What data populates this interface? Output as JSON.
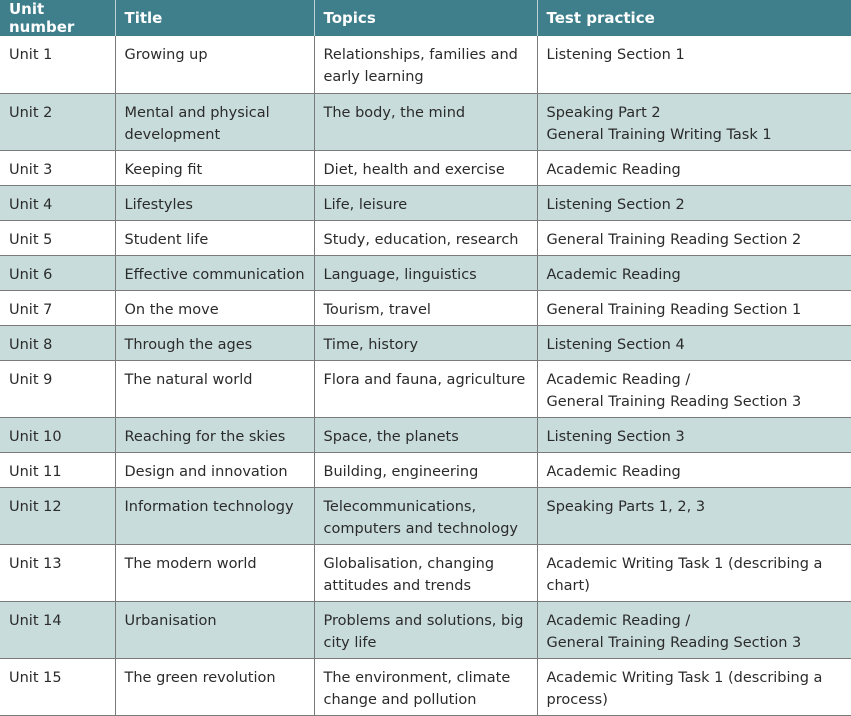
{
  "headers": [
    "Unit number",
    "Title",
    "Topics",
    "Test practice"
  ],
  "rows": [
    {
      "unit": "Unit 1",
      "title": [
        "Growing up"
      ],
      "topics": [
        "Relationships, families and",
        "early learning"
      ],
      "practice": [
        "Listening Section 1"
      ]
    },
    {
      "unit": "Unit 2",
      "title": [
        "Mental and physical",
        "development"
      ],
      "topics": [
        "The body, the mind"
      ],
      "practice": [
        "Speaking Part 2",
        "General Training Writing Task 1"
      ]
    },
    {
      "unit": "Unit 3",
      "title": [
        "Keeping fit"
      ],
      "topics": [
        "Diet, health and exercise"
      ],
      "practice": [
        "Academic Reading"
      ]
    },
    {
      "unit": "Unit 4",
      "title": [
        "Lifestyles"
      ],
      "topics": [
        "Life, leisure"
      ],
      "practice": [
        "Listening Section 2"
      ]
    },
    {
      "unit": "Unit 5",
      "title": [
        "Student life"
      ],
      "topics": [
        "Study, education, research"
      ],
      "practice": [
        "General Training Reading Section 2"
      ]
    },
    {
      "unit": "Unit 6",
      "title": [
        "Effective communication"
      ],
      "topics": [
        "Language, linguistics"
      ],
      "practice": [
        "Academic Reading"
      ]
    },
    {
      "unit": "Unit 7",
      "title": [
        "On the move"
      ],
      "topics": [
        "Tourism, travel"
      ],
      "practice": [
        "General Training Reading Section 1"
      ]
    },
    {
      "unit": "Unit 8",
      "title": [
        "Through the ages"
      ],
      "topics": [
        "Time, history"
      ],
      "practice": [
        "Listening Section 4"
      ]
    },
    {
      "unit": "Unit 9",
      "title": [
        "The natural world"
      ],
      "topics": [
        "Flora and fauna, agriculture"
      ],
      "practice": [
        "Academic Reading /",
        "General Training Reading Section 3"
      ]
    },
    {
      "unit": "Unit 10",
      "title": [
        "Reaching for the skies"
      ],
      "topics": [
        "Space, the planets"
      ],
      "practice": [
        "Listening Section 3"
      ]
    },
    {
      "unit": "Unit 11",
      "title": [
        "Design and innovation"
      ],
      "topics": [
        "Building, engineering"
      ],
      "practice": [
        "Academic Reading"
      ]
    },
    {
      "unit": "Unit 12",
      "title": [
        "Information technology"
      ],
      "topics": [
        "Telecommunications,",
        "computers and technology"
      ],
      "practice": [
        "Speaking Parts 1, 2, 3"
      ]
    },
    {
      "unit": "Unit 13",
      "title": [
        "The modern world"
      ],
      "topics": [
        "Globalisation, changing",
        "attitudes and trends"
      ],
      "practice": [
        "Academic Writing Task 1 (describing a",
        "chart)"
      ]
    },
    {
      "unit": "Unit 14",
      "title": [
        "Urbanisation"
      ],
      "topics": [
        "Problems and solutions, big",
        "city life"
      ],
      "practice": [
        "Academic Reading /",
        "General Training Reading Section 3"
      ]
    },
    {
      "unit": "Unit 15",
      "title": [
        "The green revolution"
      ],
      "topics": [
        "The environment, climate",
        "change and pollution"
      ],
      "practice": [
        "Academic Writing Task 1 (describing a",
        "process)"
      ]
    }
  ]
}
